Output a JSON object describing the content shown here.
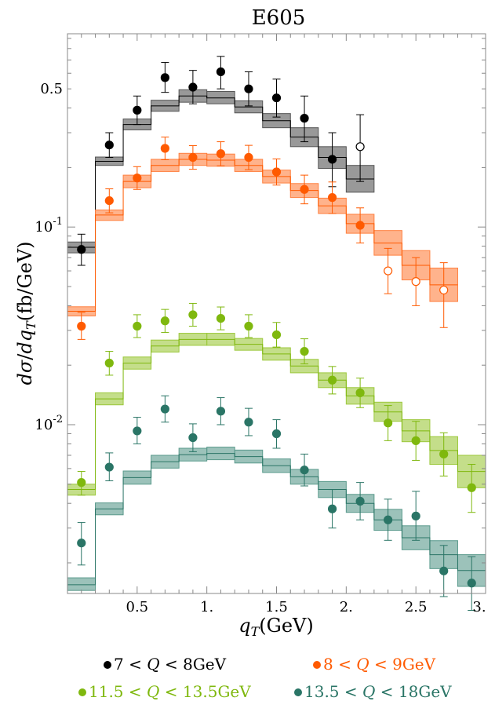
{
  "chart_data": {
    "type": "scatter",
    "title": "E605",
    "xlabel": "q_T(GeV)",
    "ylabel": "dσ/dq_T(fb/GeV)",
    "xlim": [
      0,
      3
    ],
    "ylim": [
      0.0014,
      0.95
    ],
    "yscale": "log",
    "grid": false,
    "legend_placement": "bottom",
    "x_ticks": [
      {
        "value": 0.5,
        "label": "0.5"
      },
      {
        "value": 1.0,
        "label": "1."
      },
      {
        "value": 1.5,
        "label": "1.5"
      },
      {
        "value": 2.0,
        "label": "2."
      },
      {
        "value": 2.5,
        "label": "2.5"
      },
      {
        "value": 3.0,
        "label": "3."
      }
    ],
    "y_ticks": [
      {
        "value": 0.5,
        "label": "0.5"
      },
      {
        "value": 0.1,
        "label": "10",
        "exp": "-1"
      },
      {
        "value": 0.01,
        "label": "10",
        "exp": "-2"
      }
    ],
    "series": [
      {
        "name": "7 < Q < 8GeV",
        "name_parts": [
          "7",
          "<",
          "Q",
          "<",
          "8GeV"
        ],
        "color": "#000000",
        "band_color": "#555555",
        "theory": [
          {
            "x0": 0.0,
            "x1": 0.2,
            "y": 0.079,
            "lo": 0.074,
            "hi": 0.084
          },
          {
            "x0": 0.2,
            "x1": 0.4,
            "y": 0.215,
            "lo": 0.205,
            "hi": 0.226
          },
          {
            "x0": 0.4,
            "x1": 0.6,
            "y": 0.33,
            "lo": 0.31,
            "hi": 0.352
          },
          {
            "x0": 0.6,
            "x1": 0.8,
            "y": 0.41,
            "lo": 0.385,
            "hi": 0.438
          },
          {
            "x0": 0.8,
            "x1": 1.0,
            "y": 0.46,
            "lo": 0.428,
            "hi": 0.495
          },
          {
            "x0": 1.0,
            "x1": 1.2,
            "y": 0.45,
            "lo": 0.42,
            "hi": 0.485
          },
          {
            "x0": 1.2,
            "x1": 1.4,
            "y": 0.405,
            "lo": 0.378,
            "hi": 0.435
          },
          {
            "x0": 1.4,
            "x1": 1.6,
            "y": 0.345,
            "lo": 0.318,
            "hi": 0.375
          },
          {
            "x0": 1.6,
            "x1": 1.8,
            "y": 0.285,
            "lo": 0.255,
            "hi": 0.318
          },
          {
            "x0": 1.8,
            "x1": 2.0,
            "y": 0.225,
            "lo": 0.198,
            "hi": 0.255
          },
          {
            "x0": 2.0,
            "x1": 2.2,
            "y": 0.175,
            "lo": 0.15,
            "hi": 0.205
          }
        ],
        "data": [
          {
            "x": 0.1,
            "y": 0.077,
            "lo": 0.064,
            "hi": 0.092,
            "open": false
          },
          {
            "x": 0.3,
            "y": 0.26,
            "lo": 0.225,
            "hi": 0.3,
            "open": false
          },
          {
            "x": 0.5,
            "y": 0.39,
            "lo": 0.33,
            "hi": 0.46,
            "open": false
          },
          {
            "x": 0.7,
            "y": 0.57,
            "lo": 0.48,
            "hi": 0.68,
            "open": false
          },
          {
            "x": 0.9,
            "y": 0.51,
            "lo": 0.42,
            "hi": 0.62,
            "open": false
          },
          {
            "x": 1.1,
            "y": 0.61,
            "lo": 0.5,
            "hi": 0.73,
            "open": false
          },
          {
            "x": 1.3,
            "y": 0.5,
            "lo": 0.41,
            "hi": 0.61,
            "open": false
          },
          {
            "x": 1.5,
            "y": 0.45,
            "lo": 0.36,
            "hi": 0.56,
            "open": false
          },
          {
            "x": 1.7,
            "y": 0.355,
            "lo": 0.27,
            "hi": 0.46,
            "open": false
          },
          {
            "x": 1.9,
            "y": 0.22,
            "lo": 0.16,
            "hi": 0.3,
            "open": false
          },
          {
            "x": 2.1,
            "y": 0.255,
            "lo": 0.17,
            "hi": 0.37,
            "open": true
          }
        ]
      },
      {
        "name": "8 < Q < 9GeV",
        "name_parts": [
          "8",
          "<",
          "Q",
          "<",
          "9GeV"
        ],
        "color": "#ff5a00",
        "band_color": "#ff8040",
        "theory": [
          {
            "x0": 0.0,
            "x1": 0.2,
            "y": 0.0375,
            "lo": 0.0355,
            "hi": 0.0395
          },
          {
            "x0": 0.2,
            "x1": 0.4,
            "y": 0.115,
            "lo": 0.108,
            "hi": 0.122
          },
          {
            "x0": 0.4,
            "x1": 0.6,
            "y": 0.17,
            "lo": 0.158,
            "hi": 0.183
          },
          {
            "x0": 0.6,
            "x1": 0.8,
            "y": 0.205,
            "lo": 0.191,
            "hi": 0.22
          },
          {
            "x0": 0.8,
            "x1": 1.0,
            "y": 0.22,
            "lo": 0.205,
            "hi": 0.236
          },
          {
            "x0": 1.0,
            "x1": 1.2,
            "y": 0.218,
            "lo": 0.203,
            "hi": 0.234
          },
          {
            "x0": 1.2,
            "x1": 1.4,
            "y": 0.205,
            "lo": 0.191,
            "hi": 0.22
          },
          {
            "x0": 1.4,
            "x1": 1.6,
            "y": 0.18,
            "lo": 0.167,
            "hi": 0.194
          },
          {
            "x0": 1.6,
            "x1": 1.8,
            "y": 0.153,
            "lo": 0.141,
            "hi": 0.166
          },
          {
            "x0": 1.8,
            "x1": 2.0,
            "y": 0.128,
            "lo": 0.117,
            "hi": 0.14
          },
          {
            "x0": 2.0,
            "x1": 2.2,
            "y": 0.104,
            "lo": 0.093,
            "hi": 0.116
          },
          {
            "x0": 2.2,
            "x1": 2.4,
            "y": 0.083,
            "lo": 0.072,
            "hi": 0.096
          },
          {
            "x0": 2.4,
            "x1": 2.6,
            "y": 0.064,
            "lo": 0.054,
            "hi": 0.076
          },
          {
            "x0": 2.6,
            "x1": 2.8,
            "y": 0.051,
            "lo": 0.042,
            "hi": 0.062
          }
        ],
        "data": [
          {
            "x": 0.1,
            "y": 0.0315,
            "lo": 0.027,
            "hi": 0.037,
            "open": false
          },
          {
            "x": 0.3,
            "y": 0.136,
            "lo": 0.118,
            "hi": 0.156,
            "open": false
          },
          {
            "x": 0.5,
            "y": 0.177,
            "lo": 0.155,
            "hi": 0.202,
            "open": false
          },
          {
            "x": 0.7,
            "y": 0.25,
            "lo": 0.219,
            "hi": 0.285,
            "open": false
          },
          {
            "x": 0.9,
            "y": 0.225,
            "lo": 0.196,
            "hi": 0.258,
            "open": false
          },
          {
            "x": 1.1,
            "y": 0.235,
            "lo": 0.204,
            "hi": 0.27,
            "open": false
          },
          {
            "x": 1.3,
            "y": 0.225,
            "lo": 0.195,
            "hi": 0.259,
            "open": false
          },
          {
            "x": 1.5,
            "y": 0.19,
            "lo": 0.163,
            "hi": 0.221,
            "open": false
          },
          {
            "x": 1.7,
            "y": 0.155,
            "lo": 0.131,
            "hi": 0.183,
            "open": false
          },
          {
            "x": 1.9,
            "y": 0.141,
            "lo": 0.117,
            "hi": 0.169,
            "open": false
          },
          {
            "x": 2.1,
            "y": 0.102,
            "lo": 0.083,
            "hi": 0.125,
            "open": false
          },
          {
            "x": 2.3,
            "y": 0.06,
            "lo": 0.046,
            "hi": 0.078,
            "open": true
          },
          {
            "x": 2.5,
            "y": 0.053,
            "lo": 0.04,
            "hi": 0.07,
            "open": true
          },
          {
            "x": 2.7,
            "y": 0.048,
            "lo": 0.031,
            "hi": 0.066,
            "open": true
          }
        ]
      },
      {
        "name": "11.5 < Q < 13.5GeV",
        "name_parts": [
          "11.5",
          "<",
          "Q",
          "<",
          "13.5GeV"
        ],
        "color": "#7fb80e",
        "band_color": "#9cc83c",
        "theory": [
          {
            "x0": 0.0,
            "x1": 0.2,
            "y": 0.0047,
            "lo": 0.0044,
            "hi": 0.005
          },
          {
            "x0": 0.2,
            "x1": 0.4,
            "y": 0.0135,
            "lo": 0.0126,
            "hi": 0.0145
          },
          {
            "x0": 0.4,
            "x1": 0.6,
            "y": 0.0205,
            "lo": 0.0191,
            "hi": 0.022
          },
          {
            "x0": 0.6,
            "x1": 0.8,
            "y": 0.025,
            "lo": 0.0233,
            "hi": 0.0268
          },
          {
            "x0": 0.8,
            "x1": 1.0,
            "y": 0.027,
            "lo": 0.0252,
            "hi": 0.029
          },
          {
            "x0": 1.0,
            "x1": 1.2,
            "y": 0.027,
            "lo": 0.0252,
            "hi": 0.029
          },
          {
            "x0": 1.2,
            "x1": 1.4,
            "y": 0.0255,
            "lo": 0.0238,
            "hi": 0.0273
          },
          {
            "x0": 1.4,
            "x1": 1.6,
            "y": 0.0228,
            "lo": 0.0212,
            "hi": 0.0245
          },
          {
            "x0": 1.6,
            "x1": 1.8,
            "y": 0.0198,
            "lo": 0.0183,
            "hi": 0.0214
          },
          {
            "x0": 1.8,
            "x1": 2.0,
            "y": 0.0168,
            "lo": 0.0154,
            "hi": 0.0183
          },
          {
            "x0": 2.0,
            "x1": 2.2,
            "y": 0.014,
            "lo": 0.0127,
            "hi": 0.0154
          },
          {
            "x0": 2.2,
            "x1": 2.4,
            "y": 0.0116,
            "lo": 0.0104,
            "hi": 0.013
          },
          {
            "x0": 2.4,
            "x1": 2.6,
            "y": 0.0093,
            "lo": 0.0082,
            "hi": 0.0106
          },
          {
            "x0": 2.6,
            "x1": 2.8,
            "y": 0.0074,
            "lo": 0.0063,
            "hi": 0.0087
          },
          {
            "x0": 2.8,
            "x1": 3.0,
            "y": 0.0058,
            "lo": 0.0048,
            "hi": 0.007
          }
        ],
        "data": [
          {
            "x": 0.1,
            "y": 0.0051,
            "lo": 0.0044,
            "hi": 0.0058,
            "open": false
          },
          {
            "x": 0.3,
            "y": 0.0205,
            "lo": 0.0178,
            "hi": 0.0235,
            "open": false
          },
          {
            "x": 0.5,
            "y": 0.0315,
            "lo": 0.0276,
            "hi": 0.036,
            "open": false
          },
          {
            "x": 0.7,
            "y": 0.0335,
            "lo": 0.0293,
            "hi": 0.0383,
            "open": false
          },
          {
            "x": 0.9,
            "y": 0.036,
            "lo": 0.0315,
            "hi": 0.0411,
            "open": false
          },
          {
            "x": 1.1,
            "y": 0.0345,
            "lo": 0.0302,
            "hi": 0.0394,
            "open": false
          },
          {
            "x": 1.3,
            "y": 0.0315,
            "lo": 0.0276,
            "hi": 0.036,
            "open": false
          },
          {
            "x": 1.5,
            "y": 0.0285,
            "lo": 0.0247,
            "hi": 0.0329,
            "open": false
          },
          {
            "x": 1.7,
            "y": 0.0235,
            "lo": 0.0203,
            "hi": 0.0272,
            "open": false
          },
          {
            "x": 1.9,
            "y": 0.0168,
            "lo": 0.0143,
            "hi": 0.0197,
            "open": false
          },
          {
            "x": 2.1,
            "y": 0.0145,
            "lo": 0.0122,
            "hi": 0.0172,
            "open": false
          },
          {
            "x": 2.3,
            "y": 0.0102,
            "lo": 0.0083,
            "hi": 0.0125,
            "open": false
          },
          {
            "x": 2.5,
            "y": 0.0083,
            "lo": 0.0066,
            "hi": 0.0104,
            "open": false
          },
          {
            "x": 2.7,
            "y": 0.0071,
            "lo": 0.0055,
            "hi": 0.0091,
            "open": false
          },
          {
            "x": 2.9,
            "y": 0.0048,
            "lo": 0.0036,
            "hi": 0.0063,
            "open": false
          }
        ]
      },
      {
        "name": "13.5 < Q < 18GeV",
        "name_parts": [
          "13.5",
          "<",
          "Q",
          "<",
          "18GeV"
        ],
        "color": "#2a7566",
        "band_color": "#5a9a8c",
        "theory": [
          {
            "x0": 0.0,
            "x1": 0.2,
            "y": 0.00155,
            "lo": 0.00145,
            "hi": 0.00168
          },
          {
            "x0": 0.2,
            "x1": 0.4,
            "y": 0.00375,
            "lo": 0.0035,
            "hi": 0.00402
          },
          {
            "x0": 0.4,
            "x1": 0.6,
            "y": 0.0054,
            "lo": 0.005,
            "hi": 0.00583
          },
          {
            "x0": 0.6,
            "x1": 0.8,
            "y": 0.0065,
            "lo": 0.00603,
            "hi": 0.007
          },
          {
            "x0": 0.8,
            "x1": 1.0,
            "y": 0.00705,
            "lo": 0.00655,
            "hi": 0.0076
          },
          {
            "x0": 1.0,
            "x1": 1.2,
            "y": 0.00715,
            "lo": 0.00665,
            "hi": 0.0077
          },
          {
            "x0": 1.2,
            "x1": 1.4,
            "y": 0.0069,
            "lo": 0.0064,
            "hi": 0.00744
          },
          {
            "x0": 1.4,
            "x1": 1.6,
            "y": 0.0062,
            "lo": 0.00573,
            "hi": 0.00671
          },
          {
            "x0": 1.6,
            "x1": 1.8,
            "y": 0.00545,
            "lo": 0.005,
            "hi": 0.00594
          },
          {
            "x0": 1.8,
            "x1": 2.0,
            "y": 0.0047,
            "lo": 0.00428,
            "hi": 0.00516
          },
          {
            "x0": 2.0,
            "x1": 2.2,
            "y": 0.004,
            "lo": 0.0036,
            "hi": 0.00444
          },
          {
            "x0": 2.2,
            "x1": 2.4,
            "y": 0.0033,
            "lo": 0.00292,
            "hi": 0.00373
          },
          {
            "x0": 2.4,
            "x1": 2.6,
            "y": 0.00268,
            "lo": 0.00233,
            "hi": 0.00308
          },
          {
            "x0": 2.6,
            "x1": 2.8,
            "y": 0.0022,
            "lo": 0.00187,
            "hi": 0.00259
          },
          {
            "x0": 2.8,
            "x1": 3.0,
            "y": 0.00183,
            "lo": 0.00152,
            "hi": 0.0022
          }
        ],
        "data": [
          {
            "x": 0.1,
            "y": 0.00252,
            "lo": 0.00195,
            "hi": 0.0032,
            "open": false
          },
          {
            "x": 0.3,
            "y": 0.0061,
            "lo": 0.0052,
            "hi": 0.0072,
            "open": false
          },
          {
            "x": 0.5,
            "y": 0.0093,
            "lo": 0.008,
            "hi": 0.0109,
            "open": false
          },
          {
            "x": 0.7,
            "y": 0.012,
            "lo": 0.0103,
            "hi": 0.014,
            "open": false
          },
          {
            "x": 0.9,
            "y": 0.0086,
            "lo": 0.0073,
            "hi": 0.0101,
            "open": false
          },
          {
            "x": 1.1,
            "y": 0.0117,
            "lo": 0.01,
            "hi": 0.0137,
            "open": false
          },
          {
            "x": 1.3,
            "y": 0.0103,
            "lo": 0.0088,
            "hi": 0.0121,
            "open": false
          },
          {
            "x": 1.5,
            "y": 0.009,
            "lo": 0.0076,
            "hi": 0.0106,
            "open": false
          },
          {
            "x": 1.7,
            "y": 0.0059,
            "lo": 0.0049,
            "hi": 0.0071,
            "open": false
          },
          {
            "x": 1.9,
            "y": 0.00375,
            "lo": 0.003,
            "hi": 0.0047,
            "open": false
          },
          {
            "x": 2.1,
            "y": 0.0041,
            "lo": 0.0033,
            "hi": 0.0051,
            "open": false
          },
          {
            "x": 2.3,
            "y": 0.0033,
            "lo": 0.0026,
            "hi": 0.0042,
            "open": false
          },
          {
            "x": 2.5,
            "y": 0.00345,
            "lo": 0.0026,
            "hi": 0.0046,
            "open": false
          },
          {
            "x": 2.7,
            "y": 0.00182,
            "lo": 0.00135,
            "hi": 0.00245,
            "open": false
          },
          {
            "x": 2.9,
            "y": 0.00158,
            "lo": 0.00115,
            "hi": 0.00215,
            "open": false
          }
        ]
      }
    ]
  }
}
